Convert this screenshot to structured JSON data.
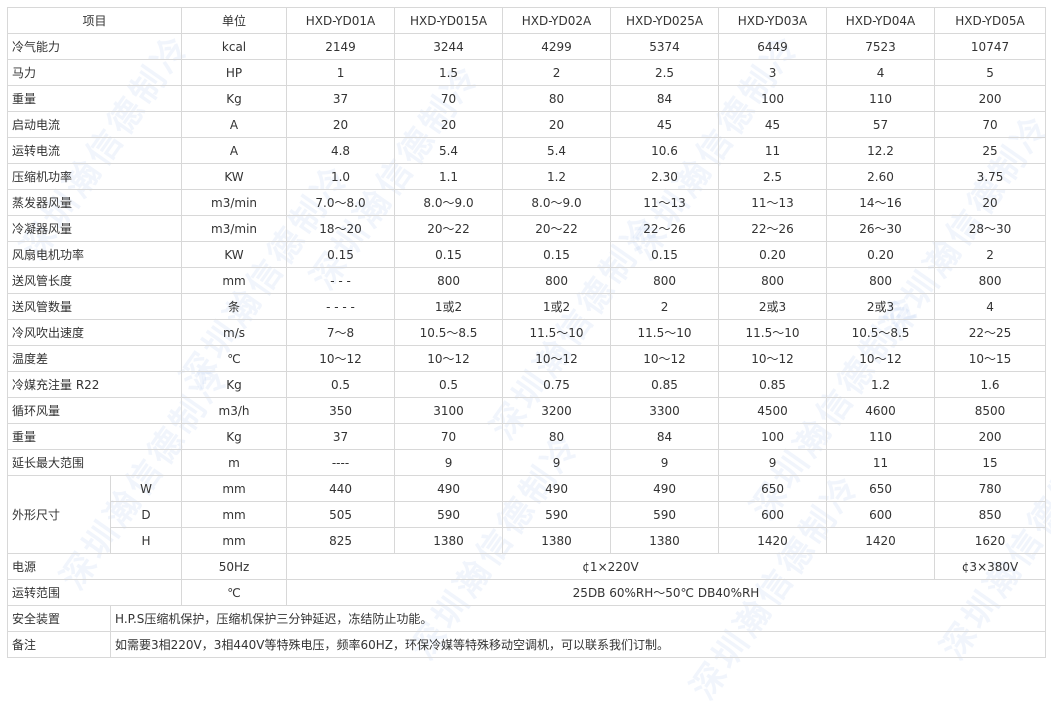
{
  "watermark": "深圳瀚信德制冷",
  "header": [
    "项目",
    "单位",
    "HXD-YD01A",
    "HXD-YD015A",
    "HXD-YD02A",
    "HXD-YD025A",
    "HXD-YD03A",
    "HXD-YD04A",
    "HXD-YD05A"
  ],
  "rows": [
    {
      "label": "冷气能力",
      "unit": "kcal",
      "values": [
        "2149",
        "3244",
        "4299",
        "5374",
        "6449",
        "7523",
        "10747"
      ]
    },
    {
      "label": "马力",
      "unit": "HP",
      "values": [
        "1",
        "1.5",
        "2",
        "2.5",
        "3",
        "4",
        "5"
      ]
    },
    {
      "label": "重量",
      "unit": "Kg",
      "values": [
        "37",
        "70",
        "80",
        "84",
        "100",
        "110",
        "200"
      ]
    },
    {
      "label": "启动电流",
      "unit": "A",
      "values": [
        "20",
        "20",
        "20",
        "45",
        "45",
        "57",
        "70"
      ]
    },
    {
      "label": "运转电流",
      "unit": "A",
      "values": [
        "4.8",
        "5.4",
        "5.4",
        "10.6",
        "11",
        "12.2",
        "25"
      ]
    },
    {
      "label": "压缩机功率",
      "unit": "KW",
      "values": [
        "1.0",
        "1.1",
        "1.2",
        "2.30",
        "2.5",
        "2.60",
        "3.75"
      ]
    },
    {
      "label": "蒸发器风量",
      "unit": "m3/min",
      "values": [
        "7.0～8.0",
        "8.0～9.0",
        "8.0～9.0",
        "11～13",
        "11～13",
        "14～16",
        "20"
      ]
    },
    {
      "label": "冷凝器风量",
      "unit": "m3/min",
      "values": [
        "18～20",
        "20～22",
        "20～22",
        "22～26",
        "22～26",
        "26～30",
        "28～30"
      ]
    },
    {
      "label": "风扇电机功率",
      "unit": "KW",
      "values": [
        "0.15",
        "0.15",
        "0.15",
        "0.15",
        "0.20",
        "0.20",
        "2"
      ]
    },
    {
      "label": "送风管长度",
      "unit": "mm",
      "values": [
        "- - -",
        "800",
        "800",
        "800",
        "800",
        "800",
        "800"
      ]
    },
    {
      "label": "送风管数量",
      "unit": "条",
      "values": [
        "- - - -",
        "1或2",
        "1或2",
        "2",
        "2或3",
        "2或3",
        "4"
      ]
    },
    {
      "label": "冷风吹出速度",
      "unit": "m/s",
      "values": [
        "7～8",
        "10.5～8.5",
        "11.5～10",
        "11.5～10",
        "11.5～10",
        "10.5～8.5",
        "22～25"
      ]
    },
    {
      "label": "温度差",
      "unit": "℃",
      "values": [
        "10～12",
        "10～12",
        "10～12",
        "10～12",
        "10～12",
        "10～12",
        "10～15"
      ]
    },
    {
      "label": "冷媒充注量 R22",
      "unit": "Kg",
      "values": [
        "0.5",
        "0.5",
        "0.75",
        "0.85",
        "0.85",
        "1.2",
        "1.6"
      ]
    },
    {
      "label": "循环风量",
      "unit": "m3/h",
      "values": [
        "350",
        "3100",
        "3200",
        "3300",
        "4500",
        "4600",
        "8500"
      ]
    },
    {
      "label": "重量",
      "unit": "Kg",
      "values": [
        "37",
        "70",
        "80",
        "84",
        "100",
        "110",
        "200"
      ]
    },
    {
      "label": "延长最大范围",
      "unit": "m",
      "values": [
        "----",
        "9",
        "9",
        "9",
        "9",
        "11",
        "15"
      ]
    }
  ],
  "dimensions": {
    "label": "外形尺寸",
    "rows": [
      {
        "sub": "W",
        "unit": "mm",
        "values": [
          "440",
          "490",
          "490",
          "490",
          "650",
          "650",
          "780"
        ]
      },
      {
        "sub": "D",
        "unit": "mm",
        "values": [
          "505",
          "590",
          "590",
          "590",
          "600",
          "600",
          "850"
        ]
      },
      {
        "sub": "H",
        "unit": "mm",
        "values": [
          "825",
          "1380",
          "1380",
          "1380",
          "1420",
          "1420",
          "1620"
        ]
      }
    ]
  },
  "power": {
    "label": "电源",
    "unit": "50Hz",
    "single": "¢1×220V",
    "three": "¢3×380V"
  },
  "range": {
    "label": "运转范围",
    "unit": "℃",
    "value": "25DB 60%RH～50℃ DB40%RH"
  },
  "safety": {
    "label": "安全装置",
    "value": "H.P.S压缩机保护，压缩机保护三分钟延迟，冻结防止功能。"
  },
  "notes": {
    "label": "备注",
    "value": "如需要3相220V，3相440V等特殊电压，频率60HZ，环保冷媒等特殊移动空调机，可以联系我们订制。"
  }
}
